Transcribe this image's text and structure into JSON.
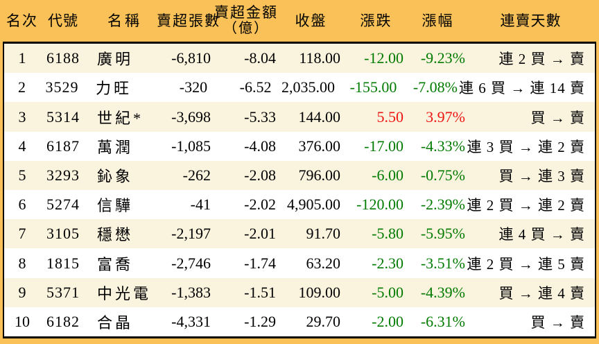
{
  "colors": {
    "header_orange": "#f9c157",
    "row_alt_cream": "#faf3de",
    "row_white": "#ffffff",
    "down_green": "#007b00",
    "up_red": "#ee1512",
    "border_black": "#000000"
  },
  "header": {
    "cols": [
      {
        "label": "名次",
        "sub": ""
      },
      {
        "label": "代號",
        "sub": ""
      },
      {
        "label": "名稱",
        "sub": ""
      },
      {
        "label": "賣超張數",
        "sub": ""
      },
      {
        "label": "賣超金額",
        "sub": "（億）"
      },
      {
        "label": "收盤",
        "sub": ""
      },
      {
        "label": "漲跌",
        "sub": ""
      },
      {
        "label": "漲幅",
        "sub": ""
      },
      {
        "label": "連賣天數",
        "sub": ""
      }
    ]
  },
  "rows": [
    {
      "rank": "1",
      "code": "6188",
      "name": "廣明",
      "volume": "-6,810",
      "amount": "-8.04",
      "close": "118.00",
      "change": "-12.00",
      "change_pct": "-9.23%",
      "streak": "連 2 買 → 賣",
      "trend": "down"
    },
    {
      "rank": "2",
      "code": "3529",
      "name": "力旺",
      "volume": "-320",
      "amount": "-6.52",
      "close": "2,035.00",
      "change": "-155.00",
      "change_pct": "-7.08%",
      "streak": "連 6 買 → 連 14 賣",
      "trend": "down"
    },
    {
      "rank": "3",
      "code": "5314",
      "name": "世紀*",
      "volume": "-3,698",
      "amount": "-5.33",
      "close": "144.00",
      "change": "5.50",
      "change_pct": "3.97%",
      "streak": "買 → 賣",
      "trend": "up"
    },
    {
      "rank": "4",
      "code": "6187",
      "name": "萬潤",
      "volume": "-1,085",
      "amount": "-4.08",
      "close": "376.00",
      "change": "-17.00",
      "change_pct": "-4.33%",
      "streak": "連 3 買 → 連 2 賣",
      "trend": "down"
    },
    {
      "rank": "5",
      "code": "3293",
      "name": "鈊象",
      "volume": "-262",
      "amount": "-2.08",
      "close": "796.00",
      "change": "-6.00",
      "change_pct": "-0.75%",
      "streak": "買 → 連 3 賣",
      "trend": "down"
    },
    {
      "rank": "6",
      "code": "5274",
      "name": "信驊",
      "volume": "-41",
      "amount": "-2.02",
      "close": "4,905.00",
      "change": "-120.00",
      "change_pct": "-2.39%",
      "streak": "連 2 買 → 連 2 賣",
      "trend": "down"
    },
    {
      "rank": "7",
      "code": "3105",
      "name": "穩懋",
      "volume": "-2,197",
      "amount": "-2.01",
      "close": "91.70",
      "change": "-5.80",
      "change_pct": "-5.95%",
      "streak": "連 4 買 → 賣",
      "trend": "down"
    },
    {
      "rank": "8",
      "code": "1815",
      "name": "富喬",
      "volume": "-2,746",
      "amount": "-1.74",
      "close": "63.20",
      "change": "-2.30",
      "change_pct": "-3.51%",
      "streak": "連 2 買 → 連 5 賣",
      "trend": "down"
    },
    {
      "rank": "9",
      "code": "5371",
      "name": "中光電",
      "volume": "-1,383",
      "amount": "-1.51",
      "close": "109.00",
      "change": "-5.00",
      "change_pct": "-4.39%",
      "streak": "買 → 連 4 賣",
      "trend": "down"
    },
    {
      "rank": "10",
      "code": "6182",
      "name": "合晶",
      "volume": "-4,331",
      "amount": "-1.29",
      "close": "29.70",
      "change": "-2.00",
      "change_pct": "-6.31%",
      "streak": "買 → 賣",
      "trend": "down"
    }
  ]
}
